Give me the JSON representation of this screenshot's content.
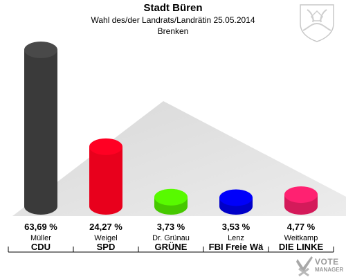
{
  "header": {
    "title": "Stadt Büren",
    "subtitle": "Wahl des/der Landrats/Landrätin 25.05.2014",
    "location": "Brenken"
  },
  "logo": {
    "line1": "VOTE",
    "line2": "MANAGER"
  },
  "chart_data": {
    "type": "bar",
    "categories": [
      "CDU",
      "SPD",
      "GRÜNE",
      "FBI Freie Wä",
      "DIE LINKE"
    ],
    "candidates": [
      "Müller",
      "Weigel",
      "Dr. Grünau",
      "Lenz",
      "Weitkamp"
    ],
    "values": [
      63.69,
      24.27,
      3.73,
      3.53,
      4.77
    ],
    "value_labels": [
      "63,69 %",
      "24,27 %",
      "3,73 %",
      "3,53 %",
      "4,77 %"
    ],
    "colors": [
      "#3a3a3a",
      "#e8001c",
      "#46c800",
      "#0000c8",
      "#d41a5a"
    ],
    "ylim": [
      0,
      63.69
    ],
    "grid": false,
    "legend": "none"
  }
}
